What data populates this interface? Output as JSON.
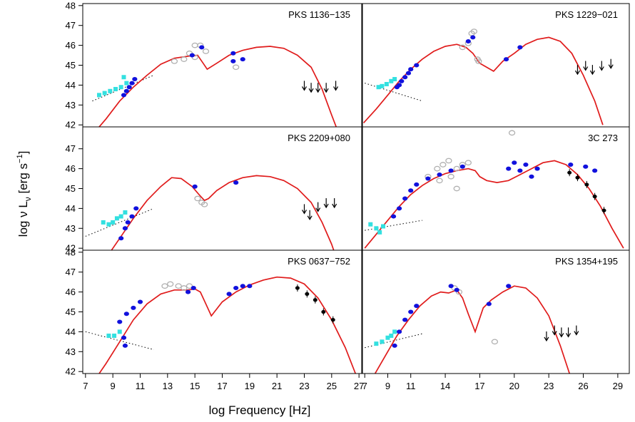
{
  "figure": {
    "ylabel_main": "log ν L",
    "ylabel_sub": "ν",
    "ylabel_unit_open": "[erg s",
    "ylabel_unit_sup": "−1",
    "ylabel_unit_close": "]",
    "xlabel": "log Frequency [Hz]"
  },
  "colors": {
    "model": "#e01b1b",
    "blue": "#1111dd",
    "cyan": "#33e0e0",
    "grey": "#b0b0b0",
    "black": "#000000"
  },
  "chart_data": [
    {
      "type": "scatter",
      "title": "PKS 1136−135",
      "xlim": [
        6.8,
        27.2
      ],
      "ylim": [
        41.9,
        48.1
      ],
      "yticks": [
        "42",
        "43",
        "44",
        "45",
        "46",
        "47",
        "48"
      ],
      "xticks": [],
      "model": [
        [
          7.5,
          41.5
        ],
        [
          8.5,
          42.3
        ],
        [
          9.5,
          43.2
        ],
        [
          10.5,
          43.9
        ],
        [
          11.5,
          44.5
        ],
        [
          12.5,
          45.05
        ],
        [
          13.5,
          45.35
        ],
        [
          14.5,
          45.45
        ],
        [
          15.2,
          45.5
        ],
        [
          15.6,
          45.1
        ],
        [
          15.9,
          44.8
        ],
        [
          16.6,
          45.1
        ],
        [
          17.5,
          45.5
        ],
        [
          18.5,
          45.75
        ],
        [
          19.5,
          45.9
        ],
        [
          20.5,
          45.95
        ],
        [
          21.5,
          45.85
        ],
        [
          22.5,
          45.5
        ],
        [
          23.5,
          44.9
        ],
        [
          24.3,
          43.8
        ],
        [
          25,
          42.5
        ],
        [
          25.5,
          41.6
        ]
      ],
      "synchrotron_lines": [
        [
          [
            7.5,
            43.2
          ],
          [
            12,
            44.5
          ]
        ]
      ],
      "blue": [
        [
          9.8,
          43.5
        ],
        [
          10,
          43.7
        ],
        [
          10.2,
          43.9
        ],
        [
          10.4,
          44.1
        ],
        [
          10.6,
          44.3
        ],
        [
          14.8,
          45.5
        ],
        [
          15.5,
          45.9
        ],
        [
          17.8,
          45.2
        ],
        [
          17.8,
          45.6
        ],
        [
          18.5,
          45.3
        ]
      ],
      "cyan": [
        [
          8,
          43.5
        ],
        [
          8.4,
          43.6
        ],
        [
          8.8,
          43.7
        ],
        [
          9.2,
          43.8
        ],
        [
          9.6,
          43.9
        ],
        [
          10,
          44.1
        ],
        [
          9.8,
          44.4
        ]
      ],
      "grey": [
        [
          13.5,
          45.2
        ],
        [
          14.2,
          45.3
        ],
        [
          14.6,
          45.6
        ],
        [
          15,
          46
        ],
        [
          15.4,
          46
        ],
        [
          15.8,
          45.7
        ],
        [
          15,
          45.4
        ],
        [
          18,
          44.9
        ]
      ],
      "black": [],
      "arrows": [
        [
          23,
          44
        ],
        [
          23.5,
          43.9
        ],
        [
          24,
          43.9
        ],
        [
          24.6,
          43.9
        ],
        [
          25.3,
          44
        ]
      ]
    },
    {
      "type": "scatter",
      "title": "PKS 1229−021",
      "xlim": [
        6.8,
        30
      ],
      "ylim": [
        41.9,
        48.1
      ],
      "yticks": [],
      "xticks": [],
      "model": [
        [
          6.9,
          42.1
        ],
        [
          8,
          42.8
        ],
        [
          9,
          43.5
        ],
        [
          10,
          44.2
        ],
        [
          11,
          44.8
        ],
        [
          12,
          45.3
        ],
        [
          13,
          45.7
        ],
        [
          14,
          45.95
        ],
        [
          15,
          46.05
        ],
        [
          15.8,
          45.9
        ],
        [
          16.4,
          45.6
        ],
        [
          17,
          45.1
        ],
        [
          18.2,
          44.7
        ],
        [
          19,
          45.2
        ],
        [
          20,
          45.6
        ],
        [
          21,
          46.05
        ],
        [
          22,
          46.3
        ],
        [
          23,
          46.4
        ],
        [
          24,
          46.2
        ],
        [
          25,
          45.6
        ],
        [
          26,
          44.5
        ],
        [
          27,
          43.2
        ],
        [
          27.7,
          42
        ]
      ],
      "synchrotron_lines": [
        [
          [
            7,
            44.1
          ],
          [
            12,
            43.2
          ]
        ]
      ],
      "blue": [
        [
          9.8,
          43.9
        ],
        [
          10,
          44
        ],
        [
          10.2,
          44.2
        ],
        [
          10.5,
          44.4
        ],
        [
          10.8,
          44.6
        ],
        [
          11,
          44.8
        ],
        [
          11.5,
          45
        ],
        [
          16,
          46.2
        ],
        [
          16.4,
          46.4
        ],
        [
          19.3,
          45.3
        ],
        [
          20.5,
          45.9
        ]
      ],
      "cyan": [
        [
          8.2,
          43.9
        ],
        [
          8.5,
          43.95
        ],
        [
          8.9,
          44.05
        ],
        [
          9.3,
          44.2
        ],
        [
          9.6,
          44.3
        ]
      ],
      "grey": [
        [
          15.5,
          45.9
        ],
        [
          16,
          46.1
        ],
        [
          16.3,
          46.6
        ],
        [
          16.5,
          46.7
        ],
        [
          16.8,
          45.3
        ],
        [
          16.9,
          45.2
        ]
      ],
      "black": [],
      "arrows": [
        [
          25.5,
          44.8
        ],
        [
          26.2,
          45
        ],
        [
          26.8,
          44.8
        ],
        [
          27.6,
          45
        ],
        [
          28.4,
          45.1
        ]
      ]
    },
    {
      "type": "scatter",
      "title": "PKS 2209+080",
      "xlim": [
        6.8,
        27.2
      ],
      "ylim": [
        41.9,
        48.1
      ],
      "yticks": [
        "42",
        "43",
        "44",
        "45",
        "46",
        "47"
      ],
      "xticks": [],
      "model": [
        [
          8.5,
          41.5
        ],
        [
          9.5,
          42.5
        ],
        [
          10.5,
          43.5
        ],
        [
          11.5,
          44.4
        ],
        [
          12.5,
          45.1
        ],
        [
          13.3,
          45.55
        ],
        [
          14,
          45.5
        ],
        [
          14.8,
          45.1
        ],
        [
          15.3,
          44.7
        ],
        [
          15.7,
          44.4
        ],
        [
          16,
          44.5
        ],
        [
          16.6,
          44.9
        ],
        [
          17.5,
          45.3
        ],
        [
          18.5,
          45.55
        ],
        [
          19.5,
          45.65
        ],
        [
          20.5,
          45.6
        ],
        [
          21.5,
          45.4
        ],
        [
          22.5,
          45
        ],
        [
          23.5,
          44.3
        ],
        [
          24.3,
          43.3
        ],
        [
          25,
          42.2
        ],
        [
          25.3,
          41.6
        ]
      ],
      "synchrotron_lines": [
        [
          [
            7,
            42.6
          ],
          [
            12,
            44
          ]
        ]
      ],
      "blue": [
        [
          9.6,
          42.5
        ],
        [
          9.9,
          43
        ],
        [
          10.1,
          43.3
        ],
        [
          10.4,
          43.6
        ],
        [
          10.7,
          44
        ],
        [
          15,
          45.1
        ],
        [
          18,
          45.3
        ]
      ],
      "cyan": [
        [
          8.3,
          43.3
        ],
        [
          8.7,
          43.2
        ],
        [
          9,
          43.3
        ],
        [
          9.3,
          43.5
        ],
        [
          9.6,
          43.6
        ],
        [
          9.9,
          43.8
        ]
      ],
      "grey": [
        [
          15.2,
          44.5
        ],
        [
          15.5,
          44.3
        ],
        [
          15.7,
          44.2
        ]
      ],
      "black": [],
      "arrows": [
        [
          23,
          44
        ],
        [
          23.4,
          43.7
        ],
        [
          24,
          44.1
        ],
        [
          24.6,
          44.3
        ],
        [
          25.2,
          44.3
        ]
      ]
    },
    {
      "type": "scatter",
      "title": "3C 273",
      "xlim": [
        6.8,
        30
      ],
      "ylim": [
        41.9,
        48.1
      ],
      "yticks": [],
      "xticks": [],
      "model": [
        [
          7,
          42
        ],
        [
          8,
          42.7
        ],
        [
          9,
          43.4
        ],
        [
          10,
          44.1
        ],
        [
          11,
          44.7
        ],
        [
          12,
          45.15
        ],
        [
          13,
          45.5
        ],
        [
          14,
          45.75
        ],
        [
          15,
          45.9
        ],
        [
          16,
          46
        ],
        [
          16.6,
          45.9
        ],
        [
          17,
          45.6
        ],
        [
          17.6,
          45.4
        ],
        [
          18.5,
          45.3
        ],
        [
          19.5,
          45.4
        ],
        [
          20.5,
          45.7
        ],
        [
          21.5,
          46
        ],
        [
          22.5,
          46.3
        ],
        [
          23.5,
          46.4
        ],
        [
          24.5,
          46.2
        ],
        [
          25.5,
          45.7
        ],
        [
          26.5,
          45
        ],
        [
          27.5,
          44.1
        ],
        [
          28.5,
          43
        ],
        [
          29.5,
          42
        ]
      ],
      "synchrotron_lines": [
        [
          [
            7,
            42.9
          ],
          [
            12,
            43.4
          ]
        ]
      ],
      "blue": [
        [
          9.5,
          43.6
        ],
        [
          10,
          44
        ],
        [
          10.5,
          44.5
        ],
        [
          11,
          44.9
        ],
        [
          11.5,
          45.2
        ],
        [
          12.5,
          45.5
        ],
        [
          13.5,
          45.7
        ],
        [
          14.5,
          45.9
        ],
        [
          15.5,
          46.1
        ],
        [
          19.5,
          46
        ],
        [
          20,
          46.3
        ],
        [
          20.5,
          45.9
        ],
        [
          21,
          46.2
        ],
        [
          21.5,
          45.6
        ],
        [
          22,
          46
        ],
        [
          24.9,
          46.2
        ],
        [
          26.2,
          46.1
        ],
        [
          27,
          45.9
        ]
      ],
      "cyan": [
        [
          7.5,
          43.2
        ],
        [
          8,
          43
        ],
        [
          8.3,
          42.8
        ],
        [
          8.6,
          43.1
        ]
      ],
      "grey": [
        [
          12.5,
          45.6
        ],
        [
          13.3,
          46
        ],
        [
          13.8,
          46.2
        ],
        [
          14.3,
          46.4
        ],
        [
          15,
          46
        ],
        [
          15.5,
          46.2
        ],
        [
          16,
          46.3
        ],
        [
          14.5,
          45.6
        ],
        [
          13.5,
          45.4
        ],
        [
          19.8,
          47.8
        ],
        [
          15,
          45
        ]
      ],
      "black": [
        [
          24.8,
          45.8
        ],
        [
          25.5,
          45.55
        ],
        [
          26.3,
          45.2
        ],
        [
          27,
          44.6
        ],
        [
          27.8,
          43.9
        ]
      ],
      "arrows": []
    },
    {
      "type": "scatter",
      "title": "PKS 0637−752",
      "xlim": [
        6.8,
        27.2
      ],
      "ylim": [
        41.9,
        48.1
      ],
      "yticks": [
        "42",
        "43",
        "44",
        "45",
        "46",
        "47",
        "48"
      ],
      "xticks": [
        "7",
        "9",
        "11",
        "13",
        "15",
        "17",
        "19",
        "21",
        "23",
        "25",
        "27"
      ],
      "model": [
        [
          7.8,
          41.7
        ],
        [
          8.5,
          42.4
        ],
        [
          9.5,
          43.5
        ],
        [
          10.5,
          44.6
        ],
        [
          11.5,
          45.4
        ],
        [
          12.5,
          45.9
        ],
        [
          13.5,
          46.1
        ],
        [
          14.5,
          46.1
        ],
        [
          15,
          46.15
        ],
        [
          15.4,
          46
        ],
        [
          15.8,
          45.4
        ],
        [
          16.2,
          44.8
        ],
        [
          17,
          45.5
        ],
        [
          18,
          46
        ],
        [
          19,
          46.35
        ],
        [
          20,
          46.6
        ],
        [
          21,
          46.75
        ],
        [
          22,
          46.7
        ],
        [
          23,
          46.4
        ],
        [
          24,
          45.7
        ],
        [
          25,
          44.6
        ],
        [
          26,
          43.2
        ],
        [
          26.8,
          41.8
        ]
      ],
      "synchrotron_lines": [
        [
          [
            7,
            44
          ],
          [
            12,
            43.1
          ]
        ]
      ],
      "blue": [
        [
          9.5,
          44.5
        ],
        [
          10,
          44.9
        ],
        [
          10.5,
          45.2
        ],
        [
          11,
          45.5
        ],
        [
          9.8,
          43.7
        ],
        [
          9.9,
          43.3
        ],
        [
          14.5,
          46
        ],
        [
          14.9,
          46.2
        ],
        [
          17.5,
          45.9
        ],
        [
          18,
          46.2
        ],
        [
          18.5,
          46.3
        ],
        [
          19,
          46.3
        ]
      ],
      "cyan": [
        [
          8.7,
          43.8
        ],
        [
          9.1,
          43.8
        ],
        [
          9.5,
          44
        ]
      ],
      "grey": [
        [
          12.8,
          46.3
        ],
        [
          13.2,
          46.4
        ],
        [
          13.8,
          46.3
        ],
        [
          14.2,
          46.2
        ],
        [
          14.6,
          46.3
        ]
      ],
      "black": [
        [
          22.5,
          46.2
        ],
        [
          23.2,
          45.9
        ],
        [
          23.8,
          45.6
        ],
        [
          24.4,
          45
        ],
        [
          25.1,
          44.6
        ]
      ],
      "arrows": []
    },
    {
      "type": "scatter",
      "title": "PKS 1354+195",
      "xlim": [
        6.8,
        30
      ],
      "ylim": [
        41.9,
        48.1
      ],
      "yticks": [],
      "xticks": [
        "7",
        "9",
        "11",
        "14",
        "17",
        "20",
        "23",
        "26",
        "29"
      ],
      "model": [
        [
          7.8,
          41.8
        ],
        [
          8.8,
          42.8
        ],
        [
          9.8,
          43.8
        ],
        [
          10.8,
          44.6
        ],
        [
          11.8,
          45.3
        ],
        [
          12.8,
          45.8
        ],
        [
          13.6,
          46
        ],
        [
          14.3,
          45.95
        ],
        [
          15,
          46.1
        ],
        [
          15.5,
          45.7
        ],
        [
          16,
          44.9
        ],
        [
          16.6,
          44
        ],
        [
          17.3,
          45.2
        ],
        [
          18,
          45.6
        ],
        [
          19,
          46
        ],
        [
          20,
          46.3
        ],
        [
          21,
          46.2
        ],
        [
          22,
          45.7
        ],
        [
          23,
          44.8
        ],
        [
          24,
          43.3
        ],
        [
          24.8,
          41.9
        ]
      ],
      "synchrotron_lines": [
        [
          [
            7,
            43.2
          ],
          [
            12,
            43.9
          ]
        ]
      ],
      "blue": [
        [
          9.6,
          43.3
        ],
        [
          10,
          44
        ],
        [
          10.5,
          44.6
        ],
        [
          11,
          45
        ],
        [
          11.5,
          45.3
        ],
        [
          14.5,
          46.3
        ],
        [
          15,
          46.1
        ],
        [
          17.8,
          45.4
        ],
        [
          19.5,
          46.3
        ]
      ],
      "cyan": [
        [
          8,
          43.4
        ],
        [
          8.5,
          43.5
        ],
        [
          9,
          43.7
        ],
        [
          9.3,
          43.8
        ],
        [
          9.6,
          44
        ]
      ],
      "grey": [
        [
          14.8,
          46.2
        ],
        [
          15.2,
          46
        ],
        [
          18.3,
          43.5
        ]
      ],
      "black": [],
      "arrows": [
        [
          22.8,
          43.8
        ],
        [
          23.5,
          44.1
        ],
        [
          24.1,
          44
        ],
        [
          24.7,
          44
        ],
        [
          25.4,
          44.1
        ]
      ]
    }
  ]
}
